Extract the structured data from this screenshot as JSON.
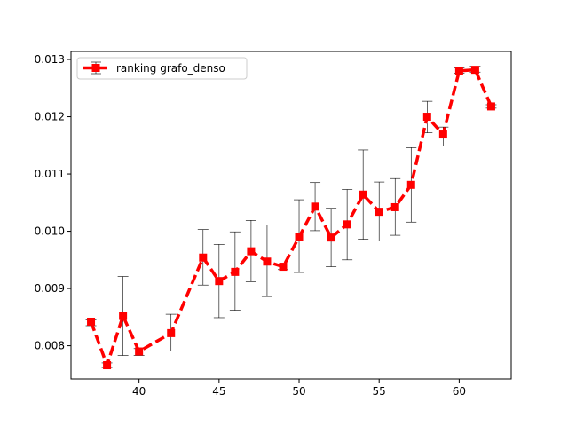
{
  "chart_data": {
    "type": "line",
    "title": "",
    "xlabel": "",
    "ylabel": "",
    "xlim": [
      35.75,
      63.25
    ],
    "ylim": [
      0.00742,
      0.01314
    ],
    "xticks": [
      40,
      45,
      50,
      55,
      60
    ],
    "xtick_labels": [
      "40",
      "45",
      "50",
      "55",
      "60"
    ],
    "yticks": [
      0.008,
      0.009,
      0.01,
      0.011,
      0.012,
      0.013
    ],
    "ytick_labels": [
      "0.008",
      "0.009",
      "0.010",
      "0.011",
      "0.012",
      "0.013"
    ],
    "grid": false,
    "legend_position": "upper-left",
    "series": [
      {
        "name": "ranking grafo_denso",
        "color": "#ff0000",
        "line_style": "dashed",
        "marker": "square",
        "x": [
          37,
          38,
          39,
          40,
          42,
          44,
          45,
          46,
          47,
          48,
          49,
          50,
          51,
          52,
          53,
          54,
          55,
          56,
          57,
          58,
          59,
          60,
          61,
          62
        ],
        "y": [
          0.00842,
          0.00766,
          0.00852,
          0.0079,
          0.00822,
          0.00954,
          0.00913,
          0.00929,
          0.00965,
          0.00947,
          0.00938,
          0.0099,
          0.01043,
          0.00989,
          0.01012,
          0.01064,
          0.01034,
          0.01042,
          0.01081,
          0.012,
          0.01169,
          0.0128,
          0.01282,
          0.01218
        ],
        "err_low": [
          0.00835,
          0.00762,
          0.00783,
          0.00783,
          0.00791,
          0.00906,
          0.00849,
          0.00862,
          0.00912,
          0.00886,
          0.00933,
          0.00928,
          0.01001,
          0.00938,
          0.0095,
          0.00986,
          0.00983,
          0.00993,
          0.01016,
          0.01172,
          0.01149,
          0.01276,
          0.01278,
          0.01215
        ],
        "err_high": [
          0.00845,
          0.0077,
          0.00921,
          0.00795,
          0.00855,
          0.01003,
          0.00977,
          0.00999,
          0.01019,
          0.01011,
          0.00943,
          0.01055,
          0.01085,
          0.0104,
          0.01073,
          0.01142,
          0.01086,
          0.01092,
          0.01146,
          0.01227,
          0.01182,
          0.01285,
          0.01288,
          0.01221
        ]
      }
    ]
  }
}
